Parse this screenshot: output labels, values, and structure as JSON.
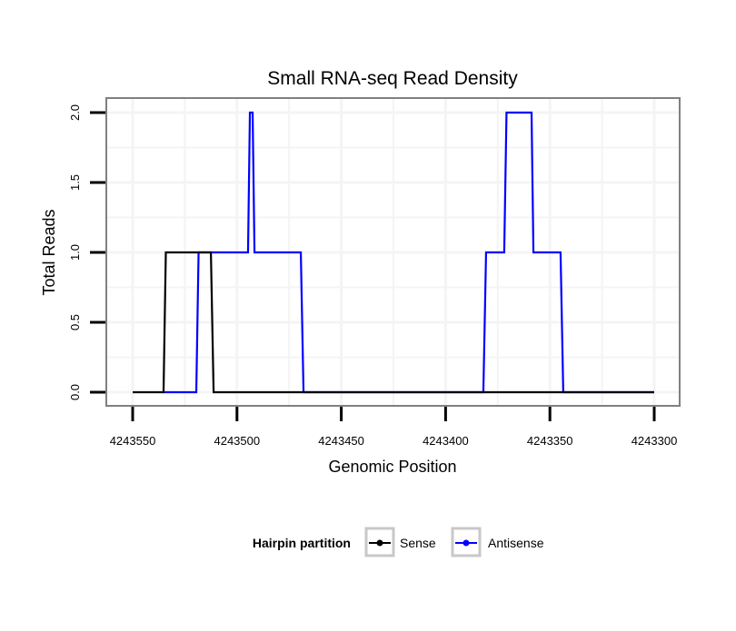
{
  "chart_data": {
    "type": "line",
    "title": "Small RNA-seq Read Density",
    "xlabel": "Genomic Position",
    "ylabel": "Total Reads",
    "xlim": [
      4243550,
      4243300
    ],
    "x_reversed": true,
    "ylim": [
      0,
      2
    ],
    "xticks": [
      4243550,
      4243500,
      4243450,
      4243400,
      4243350,
      4243300
    ],
    "xtick_labels": [
      "4243550",
      "4243500",
      "4243450",
      "4243400",
      "4243350",
      "4243300"
    ],
    "yticks": [
      0,
      0.5,
      1,
      1.5,
      2
    ],
    "ytick_labels": [
      "0.0",
      "0.5",
      "1.0",
      "1.5",
      "2.0"
    ],
    "grid": true,
    "legend": {
      "title": "Hairpin partition",
      "placement": "bottom"
    },
    "series": [
      {
        "name": "Sense",
        "color": "#000000",
        "x": [
          4243550,
          4243535.2,
          4243534.1,
          4243512.5,
          4243511.2,
          4243300
        ],
        "y": [
          0,
          0,
          1,
          1,
          0,
          0
        ]
      },
      {
        "name": "Antisense",
        "color": "#0000ff",
        "x": [
          4243535.2,
          4243519.5,
          4243518.4,
          4243494.7,
          4243493.8,
          4243492.5,
          4243491.6,
          4243469.4,
          4243468.1,
          4243381.9,
          4243380.6,
          4243371.9,
          4243370.8,
          4243358.8,
          4243357.9,
          4243344.9,
          4243343.6,
          4243300
        ],
        "y": [
          0,
          0,
          1,
          1,
          2,
          2,
          1,
          1,
          0,
          0,
          1,
          1,
          2,
          2,
          1,
          1,
          0,
          0
        ]
      }
    ]
  }
}
